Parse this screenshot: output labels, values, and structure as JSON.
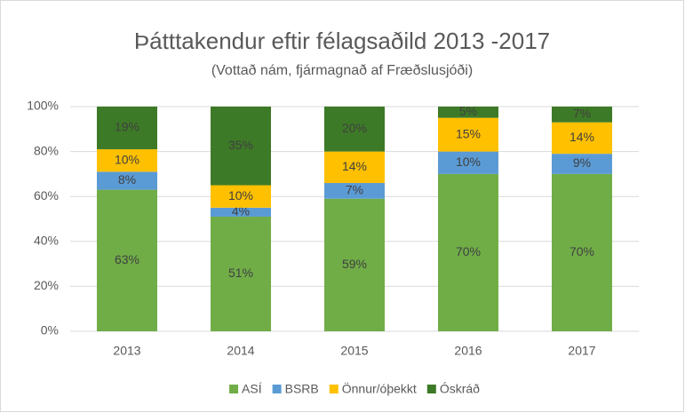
{
  "chart_data": {
    "type": "stacked_bar",
    "title": "Þátttakendur eftir félagsaðild 2013 -2017",
    "subtitle": "(Vottað nám, fjármagnað af Fræðslusjóði)",
    "categories": [
      "2013",
      "2014",
      "2015",
      "2016",
      "2017"
    ],
    "series": [
      {
        "name": "ASÍ",
        "color": "#70ad47",
        "values": [
          63,
          51,
          59,
          70,
          70
        ],
        "value_labels": [
          "63%",
          "51%",
          "59%",
          "70%",
          "70%"
        ]
      },
      {
        "name": "BSRB",
        "color": "#5b9bd5",
        "values": [
          8,
          4,
          7,
          10,
          9
        ],
        "value_labels": [
          "8%",
          "4%",
          "7%",
          "10%",
          "9%"
        ]
      },
      {
        "name": "Önnur/óþekkt",
        "color": "#ffc000",
        "values": [
          10,
          10,
          14,
          15,
          14
        ],
        "value_labels": [
          "10%",
          "10%",
          "14%",
          "15%",
          "14%"
        ]
      },
      {
        "name": "Óskráð",
        "color": "#3d7a27",
        "values": [
          19,
          35,
          20,
          5,
          7
        ],
        "value_labels": [
          "19%",
          "35%",
          "20%",
          "5%",
          "7%"
        ]
      }
    ],
    "ylim": [
      0,
      100
    ],
    "yticks": [
      {
        "value": 0,
        "label": "0%"
      },
      {
        "value": 20,
        "label": "20%"
      },
      {
        "value": 40,
        "label": "40%"
      },
      {
        "value": 60,
        "label": "60%"
      },
      {
        "value": 80,
        "label": "80%"
      },
      {
        "value": 100,
        "label": "100%"
      }
    ],
    "grid": true,
    "legend": "bottom"
  }
}
